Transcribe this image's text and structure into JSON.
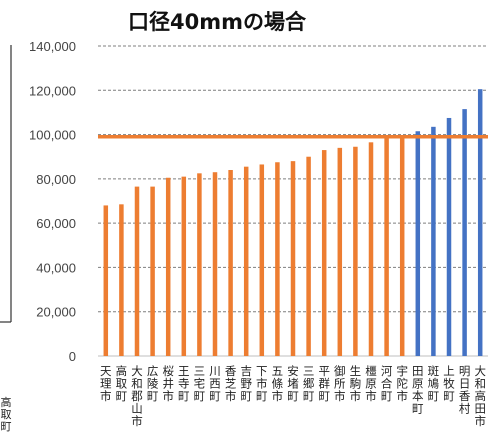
{
  "chart_data": {
    "type": "bar",
    "title": "口径40mmの場合",
    "ylim": [
      0,
      140000
    ],
    "yticks": [
      "0",
      "20,000",
      "40,000",
      "60,000",
      "80,000",
      "100,000",
      "120,000",
      "140,000"
    ],
    "grid": true,
    "reference_line": 99000,
    "colors": {
      "highlight": "#ED7D31",
      "other": "#4472C4",
      "reference": "#ED7D31",
      "grid": "#7f7f7f"
    },
    "categories": [
      "天理市",
      "高取町",
      "大和郡山市",
      "広陵町",
      "桜井市",
      "王寺町",
      "三宅町",
      "川西町",
      "香芝市",
      "吉野町",
      "下市町",
      "五條市",
      "安堵町",
      "三郷町",
      "平群町",
      "御所市",
      "生駒市",
      "橿原市",
      "河合町",
      "宇陀市",
      "田原本町",
      "斑鳩町",
      "上牧町",
      "明日香村",
      "大和高田市"
    ],
    "values": [
      68000,
      68500,
      76500,
      76500,
      80500,
      81000,
      82500,
      83000,
      84000,
      85500,
      86500,
      87500,
      88000,
      90000,
      93000,
      94000,
      94500,
      96500,
      98500,
      99000,
      101500,
      103500,
      107500,
      111500,
      120500
    ],
    "bar_colors": [
      "orange",
      "orange",
      "orange",
      "orange",
      "orange",
      "orange",
      "orange",
      "orange",
      "orange",
      "orange",
      "orange",
      "orange",
      "orange",
      "orange",
      "orange",
      "orange",
      "orange",
      "orange",
      "orange",
      "orange",
      "blue",
      "blue",
      "blue",
      "blue",
      "blue"
    ],
    "side_label": "高取町"
  }
}
